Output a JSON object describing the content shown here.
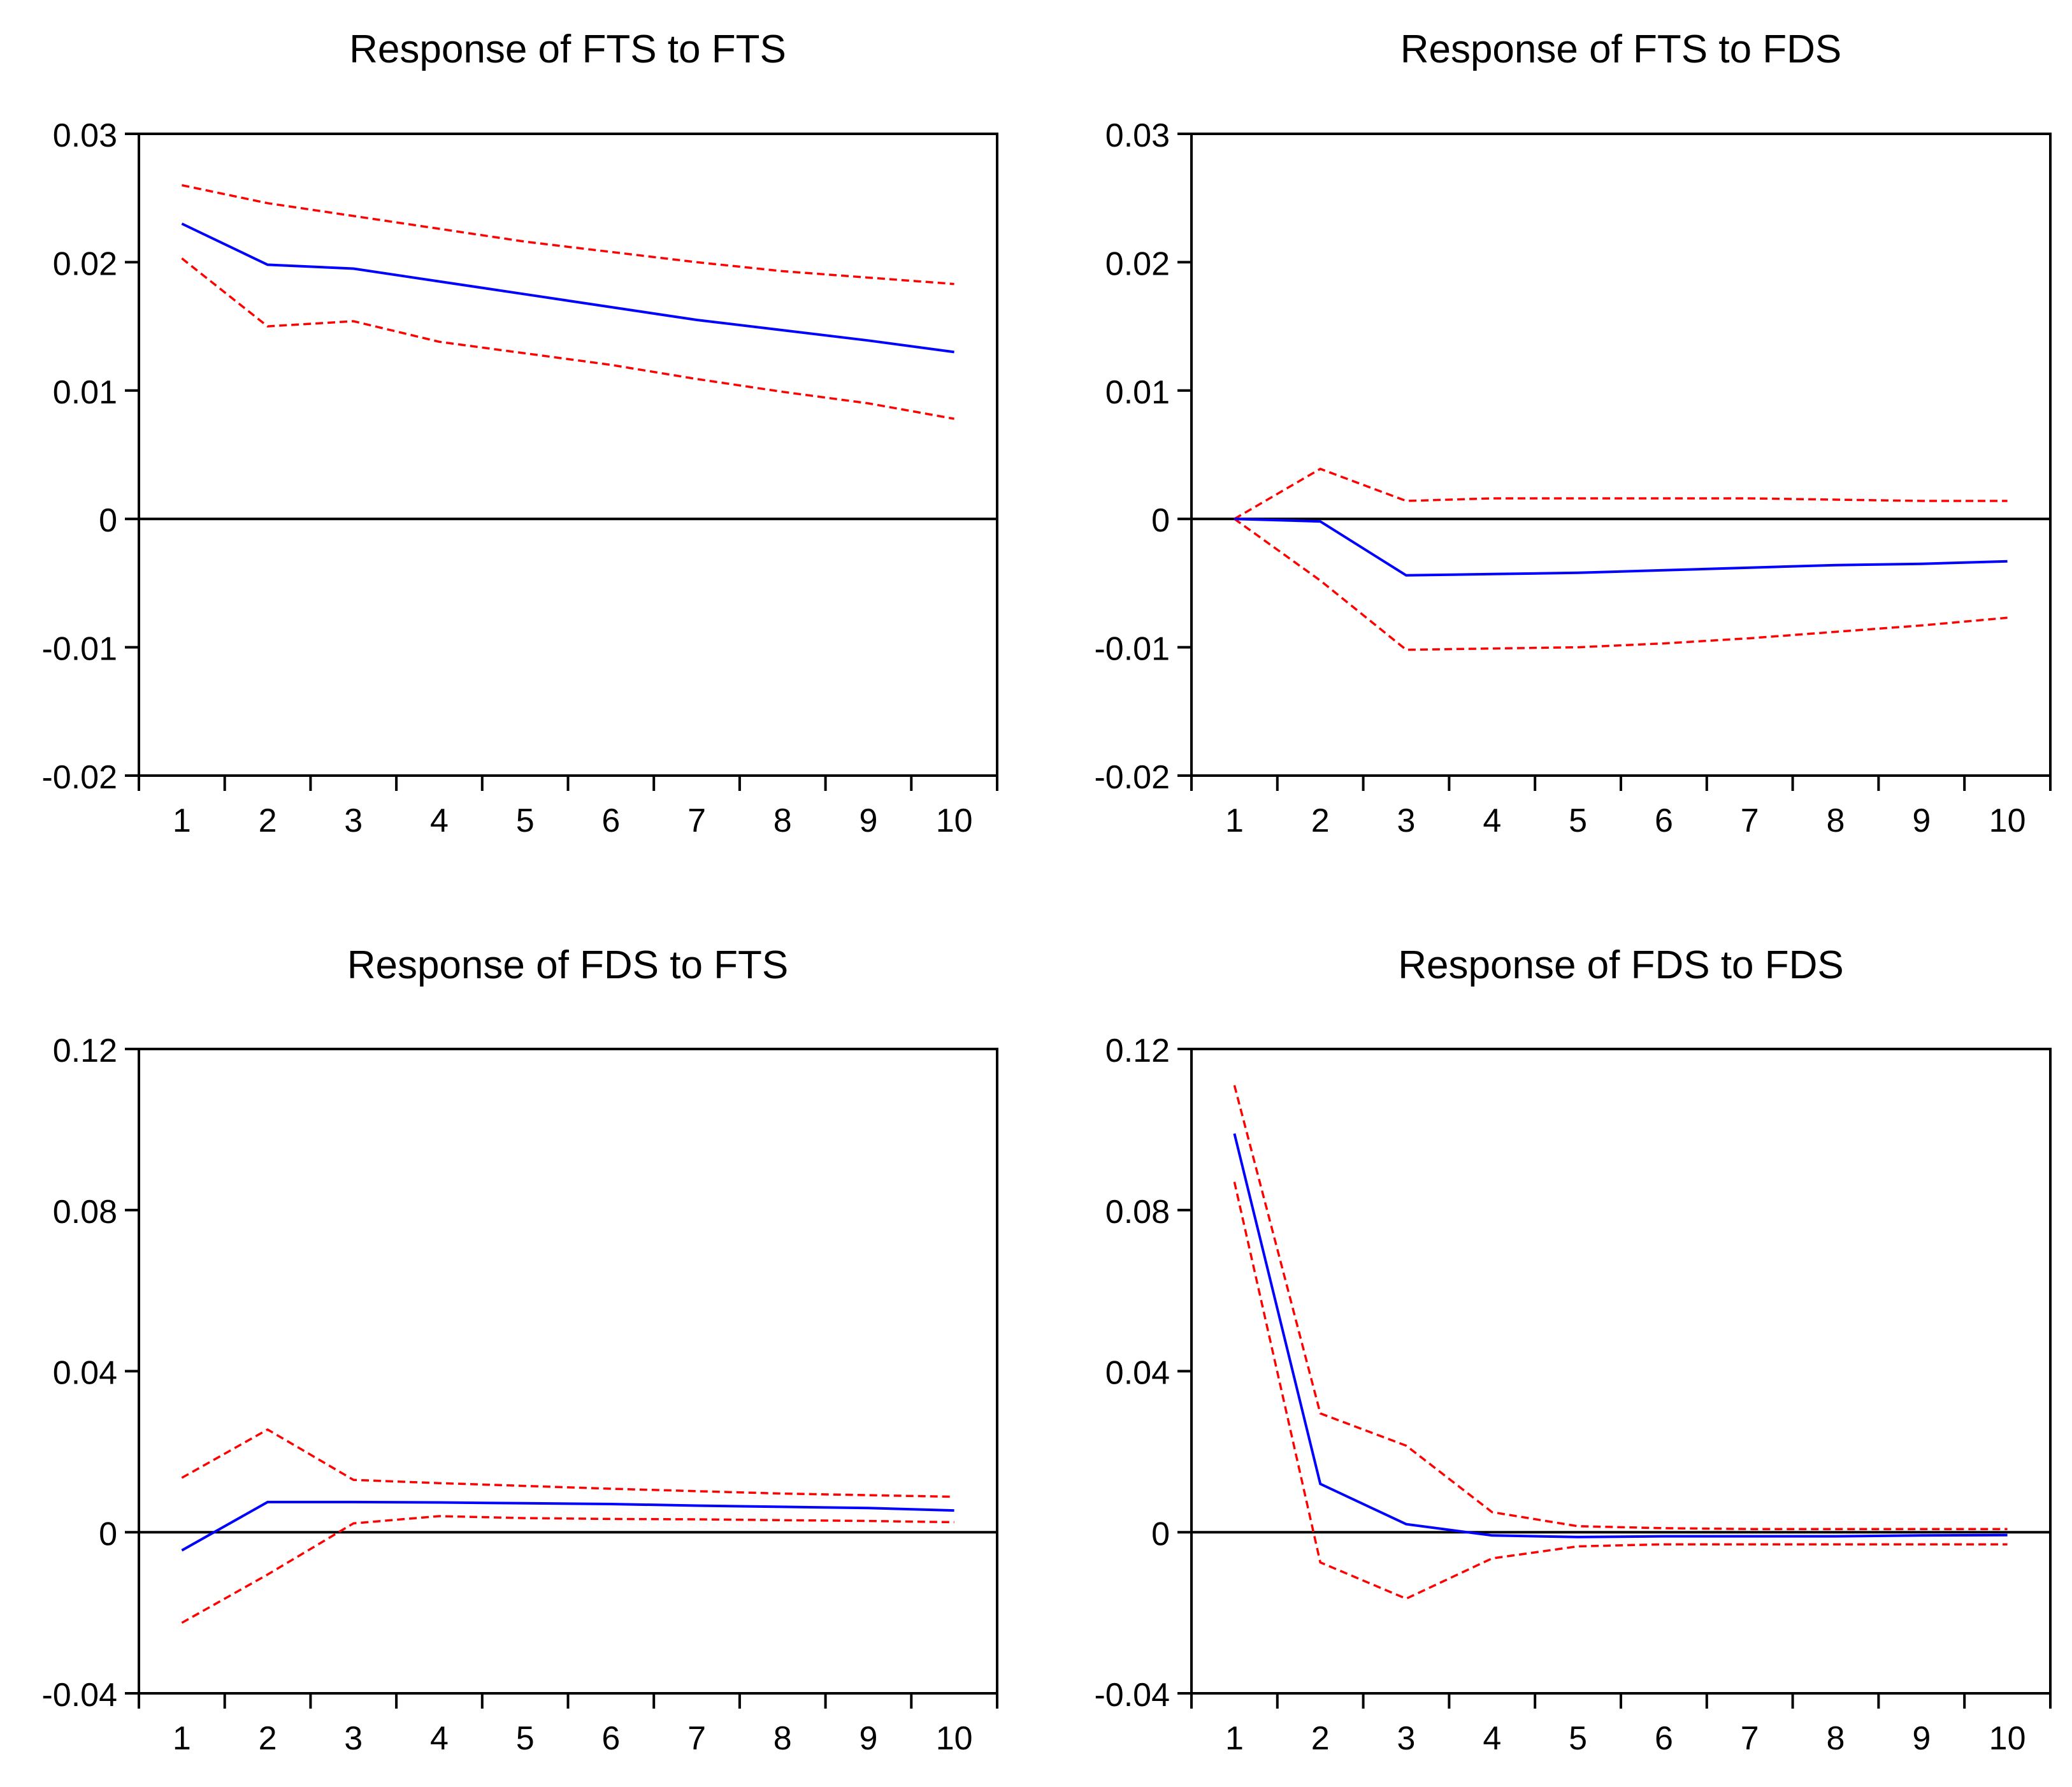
{
  "colors": {
    "response": "#0000ff",
    "bands": "#ff0000",
    "axis": "#000000",
    "background": "#ffffff"
  },
  "chart_data": [
    {
      "type": "line",
      "title": "Response of FTS to FTS",
      "x": [
        1,
        2,
        3,
        4,
        5,
        6,
        7,
        8,
        9,
        10
      ],
      "ylim": [
        -0.02,
        0.03
      ],
      "yticks": [
        0.03,
        0.02,
        0.01,
        0,
        -0.01,
        -0.02
      ],
      "ytick_labels": [
        "0.03",
        "0.02",
        "0.01",
        "0",
        "-0.01",
        "-0.02"
      ],
      "xtick_labels": [
        "1",
        "2",
        "3",
        "4",
        "5",
        "6",
        "7",
        "8",
        "9",
        "10"
      ],
      "grid": false,
      "series": [
        {
          "role": "response",
          "values": [
            0.023,
            0.0198,
            0.0195,
            0.0185,
            0.0175,
            0.0165,
            0.0155,
            0.0147,
            0.0139,
            0.013
          ]
        },
        {
          "role": "upper",
          "values": [
            0.026,
            0.0246,
            0.0236,
            0.0226,
            0.0216,
            0.0208,
            0.02,
            0.0193,
            0.0188,
            0.0183
          ]
        },
        {
          "role": "lower",
          "values": [
            0.0203,
            0.015,
            0.0154,
            0.0138,
            0.0129,
            0.012,
            0.0109,
            0.0099,
            0.009,
            0.0078
          ]
        }
      ]
    },
    {
      "type": "line",
      "title": "Response of FTS to FDS",
      "x": [
        1,
        2,
        3,
        4,
        5,
        6,
        7,
        8,
        9,
        10
      ],
      "ylim": [
        -0.02,
        0.03
      ],
      "yticks": [
        0.03,
        0.02,
        0.01,
        0,
        -0.01,
        -0.02
      ],
      "ytick_labels": [
        "0.03",
        "0.02",
        "0.01",
        "0",
        "-0.01",
        "-0.02"
      ],
      "xtick_labels": [
        "1",
        "2",
        "3",
        "4",
        "5",
        "6",
        "7",
        "8",
        "9",
        "10"
      ],
      "grid": false,
      "series": [
        {
          "role": "response",
          "values": [
            0,
            -0.0002,
            -0.0044,
            -0.0043,
            -0.0042,
            -0.004,
            -0.0038,
            -0.0036,
            -0.0035,
            -0.0033
          ]
        },
        {
          "role": "upper",
          "values": [
            0,
            0.0039,
            0.0014,
            0.0016,
            0.0016,
            0.0016,
            0.0016,
            0.0015,
            0.0014,
            0.0014
          ]
        },
        {
          "role": "lower",
          "values": [
            0,
            -0.0048,
            -0.0102,
            -0.0101,
            -0.01,
            -0.0097,
            -0.0093,
            -0.0088,
            -0.0083,
            -0.0077
          ]
        }
      ]
    },
    {
      "type": "line",
      "title": "Response of FDS to FTS",
      "x": [
        1,
        2,
        3,
        4,
        5,
        6,
        7,
        8,
        9,
        10
      ],
      "ylim": [
        -0.04,
        0.12
      ],
      "yticks": [
        0.12,
        0.08,
        0.04,
        0,
        -0.04
      ],
      "ytick_labels": [
        "0.12",
        "0.08",
        "0.04",
        "0",
        "-0.04"
      ],
      "xtick_labels": [
        "1",
        "2",
        "3",
        "4",
        "5",
        "6",
        "7",
        "8",
        "9",
        "10"
      ],
      "grid": false,
      "series": [
        {
          "role": "response",
          "values": [
            -0.0045,
            0.0075,
            0.0075,
            0.0074,
            0.0072,
            0.007,
            0.0066,
            0.0063,
            0.006,
            0.0054
          ]
        },
        {
          "role": "upper",
          "values": [
            0.0135,
            0.0255,
            0.013,
            0.0122,
            0.0115,
            0.0108,
            0.0102,
            0.0096,
            0.0092,
            0.0088
          ]
        },
        {
          "role": "lower",
          "values": [
            -0.0225,
            -0.0105,
            0.0022,
            0.004,
            0.0035,
            0.0033,
            0.0032,
            0.003,
            0.0028,
            0.0025
          ]
        }
      ]
    },
    {
      "type": "line",
      "title": "Response of FDS to FDS",
      "x": [
        1,
        2,
        3,
        4,
        5,
        6,
        7,
        8,
        9,
        10
      ],
      "ylim": [
        -0.04,
        0.12
      ],
      "yticks": [
        0.12,
        0.08,
        0.04,
        0,
        -0.04
      ],
      "ytick_labels": [
        "0.12",
        "0.08",
        "0.04",
        "0",
        "-0.04"
      ],
      "xtick_labels": [
        "1",
        "2",
        "3",
        "4",
        "5",
        "6",
        "7",
        "8",
        "9",
        "10"
      ],
      "grid": false,
      "series": [
        {
          "role": "response",
          "values": [
            0.099,
            0.012,
            0.002,
            -0.0008,
            -0.0012,
            -0.001,
            -0.001,
            -0.001,
            -0.0008,
            -0.0007
          ]
        },
        {
          "role": "upper",
          "values": [
            0.111,
            0.0295,
            0.0215,
            0.005,
            0.0015,
            0.001,
            0.0008,
            0.0008,
            0.0008,
            0.0008
          ]
        },
        {
          "role": "lower",
          "values": [
            0.087,
            -0.0075,
            -0.0165,
            -0.0065,
            -0.0035,
            -0.003,
            -0.003,
            -0.003,
            -0.003,
            -0.003
          ]
        }
      ]
    }
  ]
}
